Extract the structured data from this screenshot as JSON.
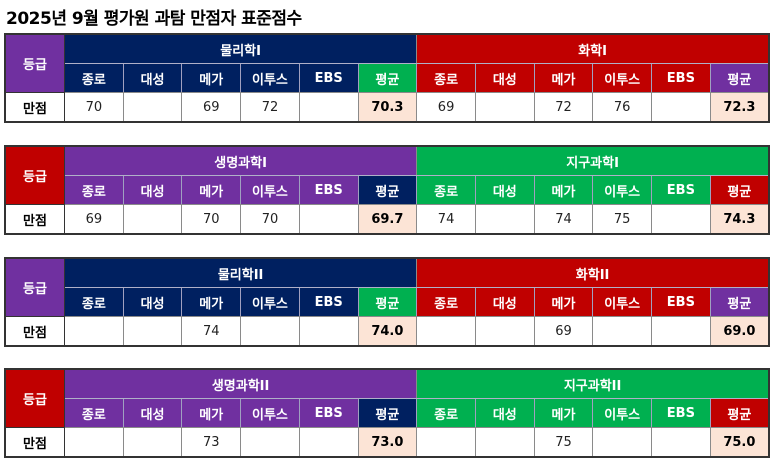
{
  "title": "2025년 9월 평가원 과탐 만점자 표준점수",
  "grade_header": "등급",
  "row_label": "만점",
  "columns": [
    "종로",
    "대성",
    "메가",
    "이투스",
    "EBS",
    "평균"
  ],
  "colors": {
    "navy": "#002060",
    "red": "#c00000",
    "purple": "#7030a0",
    "green": "#00b050",
    "avg_cell": "#fce4d6"
  },
  "tables": [
    {
      "left": {
        "subject": "물리학I",
        "values": [
          "70",
          "",
          "69",
          "72",
          "",
          "70.3"
        ]
      },
      "right": {
        "subject": "화학I",
        "values": [
          "69",
          "",
          "72",
          "76",
          "",
          "72.3"
        ]
      }
    },
    {
      "left": {
        "subject": "생명과학I",
        "values": [
          "69",
          "",
          "70",
          "70",
          "",
          "69.7"
        ]
      },
      "right": {
        "subject": "지구과학I",
        "values": [
          "74",
          "",
          "74",
          "75",
          "",
          "74.3"
        ]
      }
    },
    {
      "left": {
        "subject": "물리학II",
        "values": [
          "",
          "",
          "74",
          "",
          "",
          "74.0"
        ]
      },
      "right": {
        "subject": "화학II",
        "values": [
          "",
          "",
          "69",
          "",
          "",
          "69.0"
        ]
      }
    },
    {
      "left": {
        "subject": "생명과학II",
        "values": [
          "",
          "",
          "73",
          "",
          "",
          "73.0"
        ]
      },
      "right": {
        "subject": "지구과학II",
        "values": [
          "",
          "",
          "75",
          "",
          "",
          "75.0"
        ]
      }
    }
  ]
}
